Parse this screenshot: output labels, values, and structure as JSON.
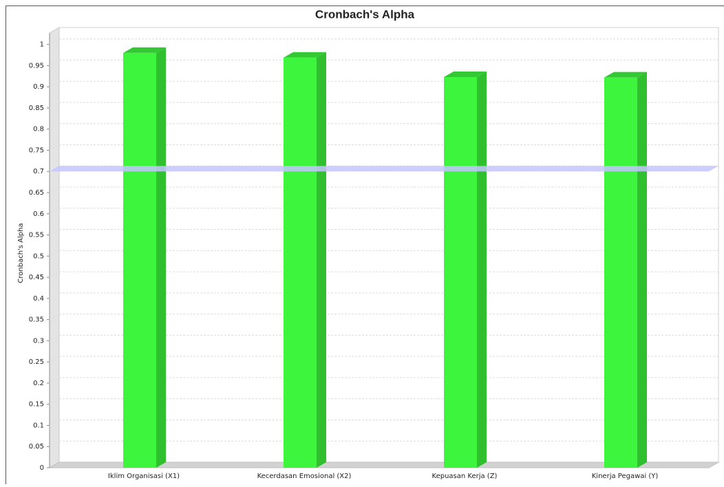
{
  "chart_data": {
    "type": "bar",
    "title": "Cronbach's Alpha",
    "y_label": "Cronbach's Alpha",
    "categories": [
      "Iklim Organisasi (X1)",
      "Kecerdasan Emosional (X2)",
      "Kepuasan Kerja (Z)",
      "Kinerja Pegawai (Y)"
    ],
    "values": [
      0.98,
      0.969,
      0.923,
      0.922
    ],
    "color": "#3cf53c",
    "threshold": 0.7,
    "threshold_color": "#c4c4ff",
    "ylim": [
      0,
      1.04
    ],
    "yticks": [
      0,
      0.05,
      0.1,
      0.15,
      0.2,
      0.25,
      0.3,
      0.35,
      0.4,
      0.45,
      0.5,
      0.55,
      0.6,
      0.65,
      0.7,
      0.75,
      0.8,
      0.85,
      0.9,
      0.95,
      1
    ],
    "grid": true
  }
}
